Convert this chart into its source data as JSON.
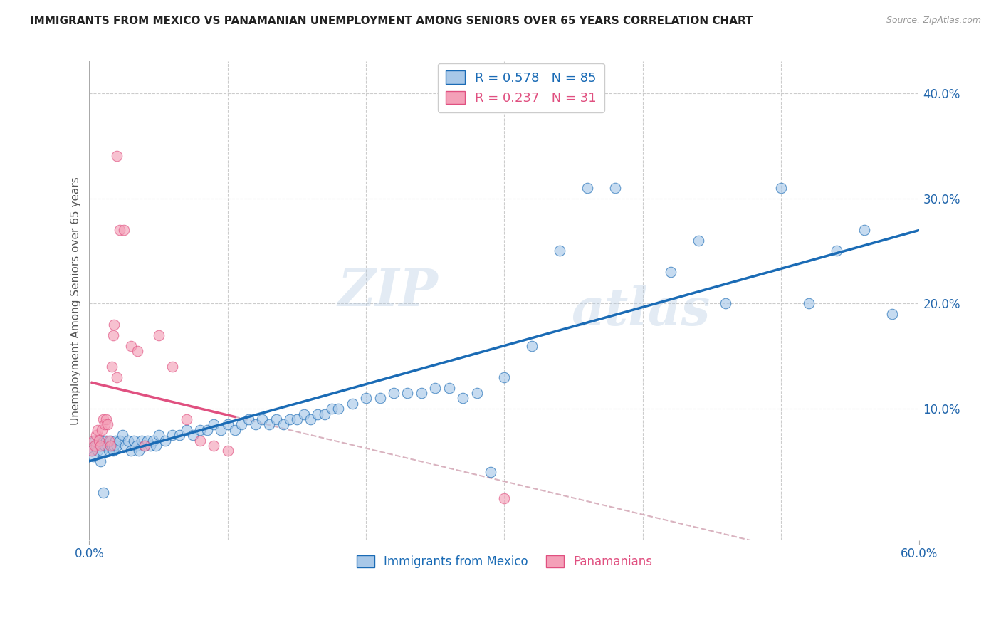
{
  "title": "IMMIGRANTS FROM MEXICO VS PANAMANIAN UNEMPLOYMENT AMONG SENIORS OVER 65 YEARS CORRELATION CHART",
  "source": "Source: ZipAtlas.com",
  "ylabel": "Unemployment Among Seniors over 65 years",
  "legend_label_blue": "Immigrants from Mexico",
  "legend_label_pink": "Panamanians",
  "xlim": [
    0.0,
    0.6
  ],
  "ylim": [
    -0.025,
    0.43
  ],
  "xticks": [
    0.0,
    0.6
  ],
  "yticks": [
    0.1,
    0.2,
    0.3,
    0.4
  ],
  "xtick_labels": [
    "0.0%",
    "60.0%"
  ],
  "ytick_labels": [
    "10.0%",
    "20.0%",
    "30.0%",
    "40.0%"
  ],
  "R_blue": 0.578,
  "N_blue": 85,
  "R_pink": 0.237,
  "N_pink": 31,
  "color_blue": "#a8c8e8",
  "color_pink": "#f4a0b8",
  "line_color_blue": "#1a6bb5",
  "line_color_pink": "#e05080",
  "line_color_dashed": "#d0a0b0",
  "blue_scatter_x": [
    0.002,
    0.003,
    0.004,
    0.005,
    0.006,
    0.007,
    0.008,
    0.009,
    0.01,
    0.011,
    0.012,
    0.013,
    0.014,
    0.015,
    0.016,
    0.017,
    0.018,
    0.019,
    0.02,
    0.022,
    0.024,
    0.026,
    0.028,
    0.03,
    0.032,
    0.034,
    0.036,
    0.038,
    0.04,
    0.042,
    0.044,
    0.046,
    0.048,
    0.05,
    0.055,
    0.06,
    0.065,
    0.07,
    0.075,
    0.08,
    0.085,
    0.09,
    0.095,
    0.1,
    0.105,
    0.11,
    0.115,
    0.12,
    0.125,
    0.13,
    0.135,
    0.14,
    0.145,
    0.15,
    0.155,
    0.16,
    0.165,
    0.17,
    0.175,
    0.18,
    0.19,
    0.2,
    0.21,
    0.22,
    0.23,
    0.24,
    0.25,
    0.26,
    0.27,
    0.28,
    0.29,
    0.3,
    0.32,
    0.34,
    0.36,
    0.38,
    0.42,
    0.44,
    0.46,
    0.5,
    0.52,
    0.54,
    0.56,
    0.58,
    0.01
  ],
  "blue_scatter_y": [
    0.06,
    0.055,
    0.07,
    0.065,
    0.06,
    0.07,
    0.05,
    0.06,
    0.07,
    0.065,
    0.07,
    0.065,
    0.06,
    0.07,
    0.065,
    0.06,
    0.065,
    0.07,
    0.065,
    0.07,
    0.075,
    0.065,
    0.07,
    0.06,
    0.07,
    0.065,
    0.06,
    0.07,
    0.065,
    0.07,
    0.065,
    0.07,
    0.065,
    0.075,
    0.07,
    0.075,
    0.075,
    0.08,
    0.075,
    0.08,
    0.08,
    0.085,
    0.08,
    0.085,
    0.08,
    0.085,
    0.09,
    0.085,
    0.09,
    0.085,
    0.09,
    0.085,
    0.09,
    0.09,
    0.095,
    0.09,
    0.095,
    0.095,
    0.1,
    0.1,
    0.105,
    0.11,
    0.11,
    0.115,
    0.115,
    0.115,
    0.12,
    0.12,
    0.11,
    0.115,
    0.04,
    0.13,
    0.16,
    0.25,
    0.31,
    0.31,
    0.23,
    0.26,
    0.2,
    0.31,
    0.2,
    0.25,
    0.27,
    0.19,
    0.02
  ],
  "pink_scatter_x": [
    0.002,
    0.003,
    0.004,
    0.005,
    0.006,
    0.007,
    0.008,
    0.009,
    0.01,
    0.011,
    0.012,
    0.013,
    0.014,
    0.015,
    0.016,
    0.017,
    0.018,
    0.02,
    0.022,
    0.025,
    0.03,
    0.035,
    0.04,
    0.05,
    0.06,
    0.07,
    0.08,
    0.09,
    0.1,
    0.3,
    0.02
  ],
  "pink_scatter_y": [
    0.06,
    0.07,
    0.065,
    0.075,
    0.08,
    0.07,
    0.065,
    0.08,
    0.09,
    0.085,
    0.09,
    0.085,
    0.07,
    0.065,
    0.14,
    0.17,
    0.18,
    0.13,
    0.27,
    0.27,
    0.16,
    0.155,
    0.065,
    0.17,
    0.14,
    0.09,
    0.07,
    0.065,
    0.06,
    0.015,
    0.34
  ],
  "watermark_zip": "ZIP",
  "watermark_atlas": "atlas",
  "background_color": "#ffffff",
  "grid_color": "#cccccc"
}
